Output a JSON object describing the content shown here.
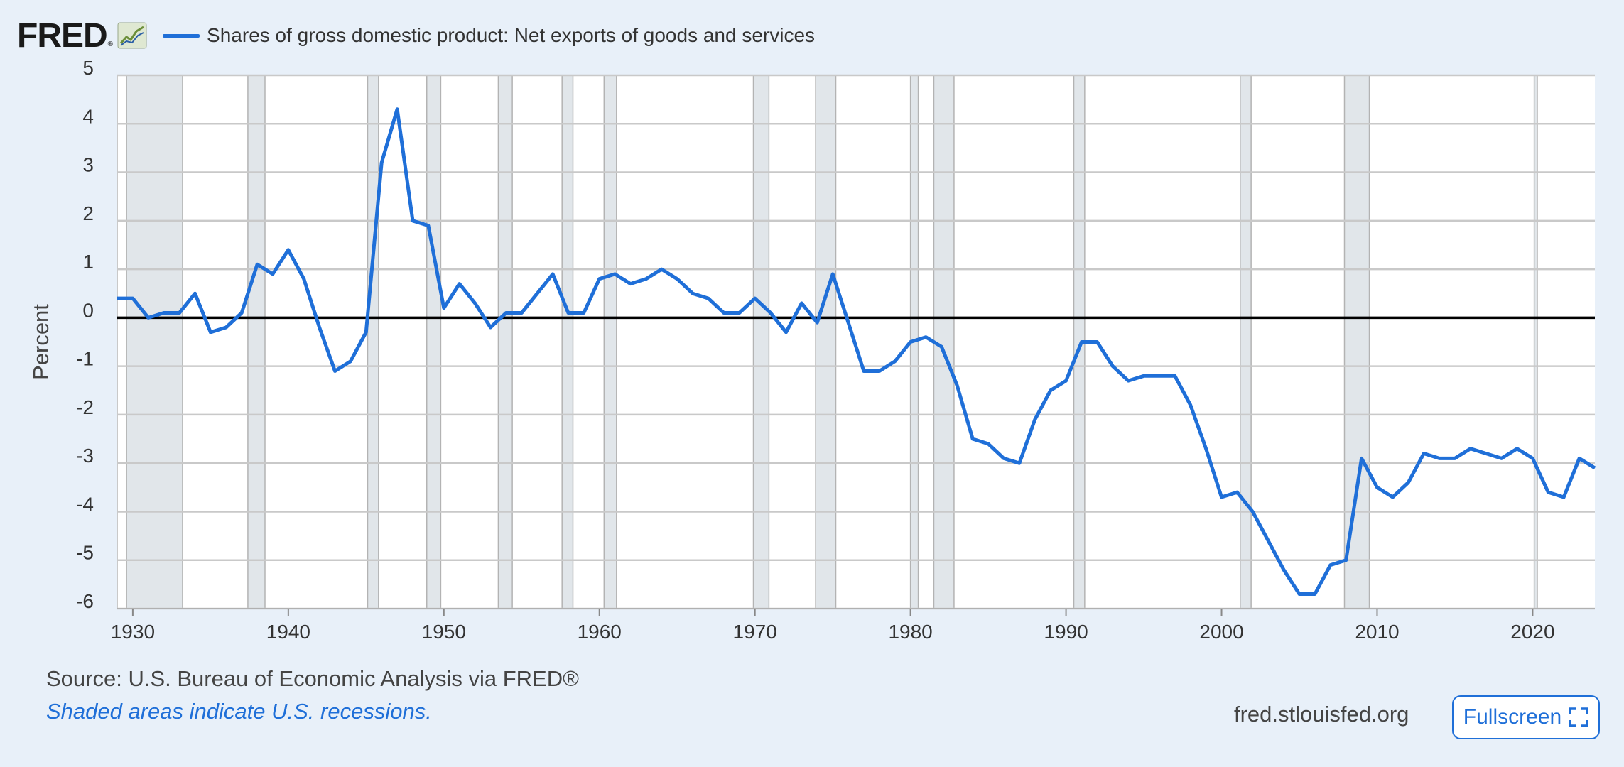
{
  "header": {
    "logo_text": "FRED",
    "logo_mark": "®",
    "logo_icon": "line-chart-icon",
    "legend_label": "Shares of gross domestic product: Net exports of goods and services"
  },
  "colors": {
    "background": "#e8f0f9",
    "plot_background": "#ffffff",
    "series": "#1f6fd8",
    "recession": "#e1e6ea",
    "grid": "#c9c9c9",
    "zero_line": "#000000"
  },
  "chart_data": {
    "type": "line",
    "title": "",
    "xlabel": "",
    "ylabel": "Percent",
    "xlim": [
      1929,
      2024
    ],
    "ylim": [
      -6,
      5
    ],
    "yticks": [
      5,
      4,
      3,
      2,
      1,
      0,
      -1,
      -2,
      -3,
      -4,
      -5,
      -6
    ],
    "xticks": [
      1930,
      1940,
      1950,
      1960,
      1970,
      1980,
      1990,
      2000,
      2010,
      2020
    ],
    "grid": true,
    "legend_position": "top",
    "series": [
      {
        "name": "Shares of gross domestic product: Net exports of goods and services",
        "x": [
          1929,
          1930,
          1931,
          1932,
          1933,
          1934,
          1935,
          1936,
          1937,
          1938,
          1939,
          1940,
          1941,
          1942,
          1943,
          1944,
          1945,
          1946,
          1947,
          1948,
          1949,
          1950,
          1951,
          1952,
          1953,
          1954,
          1955,
          1956,
          1957,
          1958,
          1959,
          1960,
          1961,
          1962,
          1963,
          1964,
          1965,
          1966,
          1967,
          1968,
          1969,
          1970,
          1971,
          1972,
          1973,
          1974,
          1975,
          1976,
          1977,
          1978,
          1979,
          1980,
          1981,
          1982,
          1983,
          1984,
          1985,
          1986,
          1987,
          1988,
          1989,
          1990,
          1991,
          1992,
          1993,
          1994,
          1995,
          1996,
          1997,
          1998,
          1999,
          2000,
          2001,
          2002,
          2003,
          2004,
          2005,
          2006,
          2007,
          2008,
          2009,
          2010,
          2011,
          2012,
          2013,
          2014,
          2015,
          2016,
          2017,
          2018,
          2019,
          2020,
          2021,
          2022,
          2023,
          2024
        ],
        "y": [
          0.4,
          0.4,
          0,
          0.1,
          0.1,
          0.5,
          -0.3,
          -0.2,
          0.1,
          1.1,
          0.9,
          1.4,
          0.8,
          -0.2,
          -1.1,
          -0.9,
          -0.3,
          3.2,
          4.3,
          2,
          1.9,
          0.2,
          0.7,
          0.3,
          -0.2,
          0.1,
          0.1,
          0.5,
          0.9,
          0.1,
          0.1,
          0.8,
          0.9,
          0.7,
          0.8,
          1,
          0.8,
          0.5,
          0.4,
          0.1,
          0.1,
          0.4,
          0.1,
          -0.3,
          0.3,
          -0.1,
          0.9,
          -0.1,
          -1.1,
          -1.1,
          -0.9,
          -0.5,
          -0.4,
          -0.6,
          -1.4,
          -2.5,
          -2.6,
          -2.9,
          -3,
          -2.1,
          -1.5,
          -1.3,
          -0.5,
          -0.5,
          -1,
          -1.3,
          -1.2,
          -1.2,
          -1.2,
          -1.8,
          -2.7,
          -3.7,
          -3.6,
          -4,
          -4.6,
          -5.2,
          -5.7,
          -5.7,
          -5.1,
          -5,
          -2.9,
          -3.5,
          -3.7,
          -3.4,
          -2.8,
          -2.9,
          -2.9,
          -2.7,
          -2.8,
          -2.9,
          -2.7,
          -2.9,
          -3.6,
          -3.7,
          -2.9,
          -3.1
        ]
      }
    ],
    "recessions": [
      [
        1929.6,
        1933.2
      ],
      [
        1937.4,
        1938.5
      ],
      [
        1945.1,
        1945.8
      ],
      [
        1948.9,
        1949.8
      ],
      [
        1953.5,
        1954.4
      ],
      [
        1957.6,
        1958.3
      ],
      [
        1960.3,
        1961.1
      ],
      [
        1969.9,
        1970.9
      ],
      [
        1973.9,
        1975.2
      ],
      [
        1980.0,
        1980.5
      ],
      [
        1981.5,
        1982.8
      ],
      [
        1990.5,
        1991.2
      ],
      [
        2001.2,
        2001.9
      ],
      [
        2007.9,
        2009.5
      ],
      [
        2020.1,
        2020.3
      ]
    ]
  },
  "footer": {
    "source": "Source: U.S. Bureau of Economic Analysis via FRED®",
    "recession_note": "Shaded areas indicate U.S. recessions.",
    "site": "fred.stlouisfed.org",
    "fullscreen_label": "Fullscreen",
    "fullscreen_icon": "expand-icon"
  }
}
